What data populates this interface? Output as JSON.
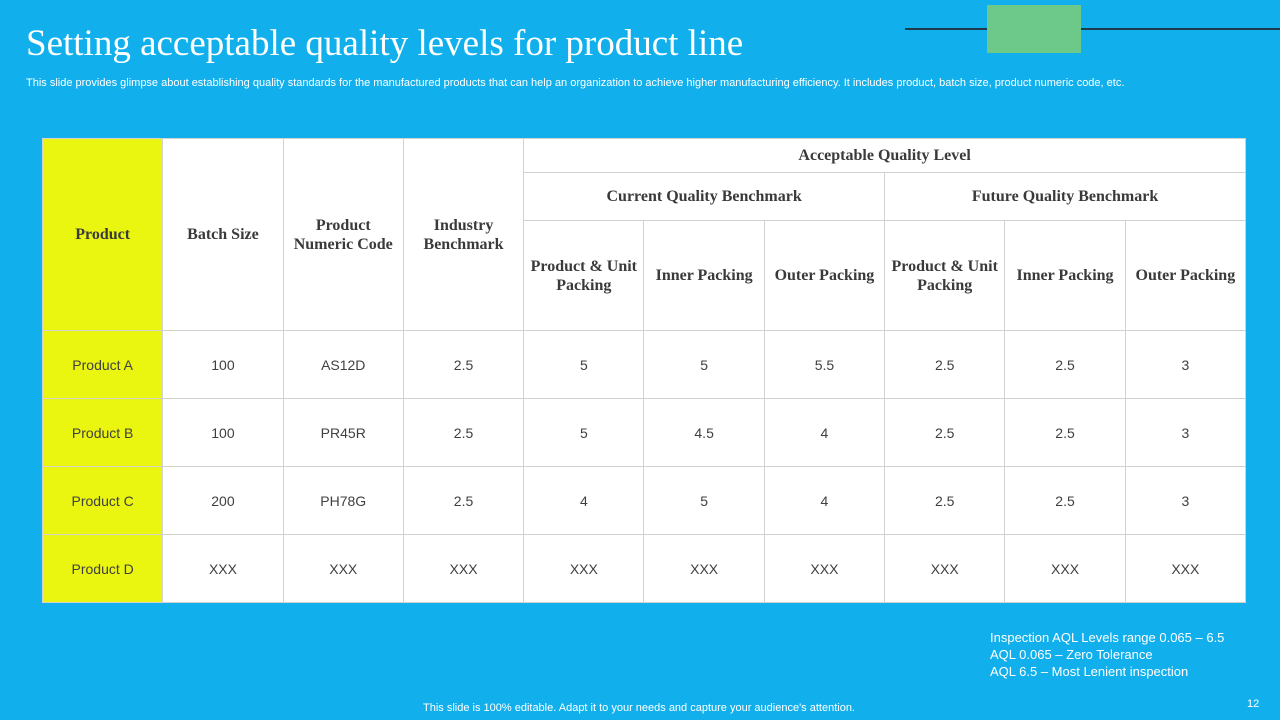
{
  "header": {
    "title": "Setting acceptable quality levels for product line",
    "subtitle": "This slide provides glimpse about establishing quality standards for the manufactured products that can help an organization to achieve higher manufacturing efficiency. It includes product, batch size, product numeric code, etc."
  },
  "table": {
    "columns": {
      "product": "Product",
      "batch_size": "Batch Size",
      "code": "Product Numeric Code",
      "industry": "Industry Benchmark",
      "group": "Acceptable Quality Level",
      "subgroups": [
        "Current Quality Benchmark",
        "Future Quality Benchmark"
      ],
      "subcolumns": [
        "Product & Unit Packing",
        "Inner Packing",
        "Outer Packing",
        "Product & Unit Packing",
        "Inner Packing",
        "Outer Packing"
      ]
    },
    "rows": [
      [
        "Product A",
        "100",
        "AS12D",
        "2.5",
        "5",
        "5",
        "5.5",
        "2.5",
        "2.5",
        "3"
      ],
      [
        "Product B",
        "100",
        "PR45R",
        "2.5",
        "5",
        "4.5",
        "4",
        "2.5",
        "2.5",
        "3"
      ],
      [
        "Product C",
        "200",
        "PH78G",
        "2.5",
        "4",
        "5",
        "4",
        "2.5",
        "2.5",
        "3"
      ],
      [
        "Product D",
        "XXX",
        "XXX",
        "XXX",
        "XXX",
        "XXX",
        "XXX",
        "XXX",
        "XXX",
        "XXX"
      ]
    ]
  },
  "notes": [
    "Inspection AQL Levels range 0.065 – 6.5",
    "AQL 0.065  – Zero Tolerance",
    "AQL 6.5 – Most Lenient inspection"
  ],
  "footer": "This slide is 100% editable. Adapt it to your needs and capture your audience's attention.",
  "page_number": "12"
}
